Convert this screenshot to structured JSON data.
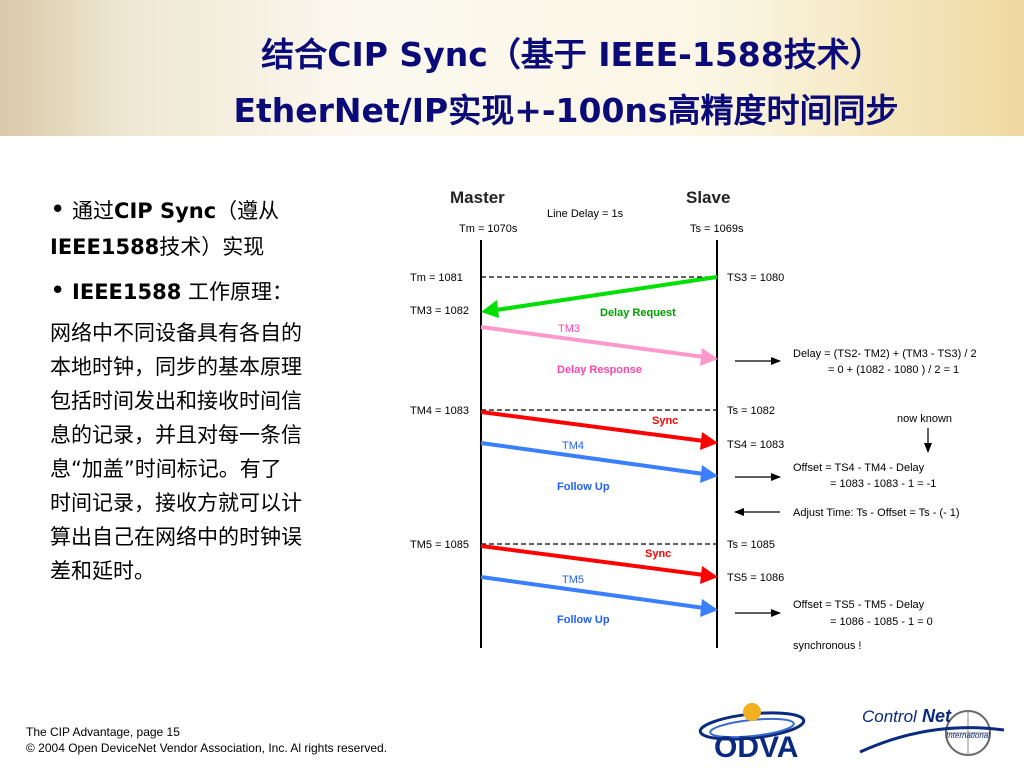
{
  "header": {
    "title_line1": "结合CIP Sync（基于 IEEE-1588技术）",
    "title_line2": "EtherNet/IP实现+-100ns高精度时间同步"
  },
  "bullets": {
    "b1_prefix": "通过",
    "b1_bold": "CIP Sync",
    "b1_suffix": "（遵从",
    "b1_line2_bold": "IEEE1588",
    "b1_line2_suffix": "技术）实现",
    "b2_bold": "IEEE1588",
    "b2_suffix": " 工作原理：",
    "para_lines": [
      "网络中不同设备具有各自的",
      "本地时钟，同步的基本原理",
      "包括时间发出和接收时间信",
      "息的记录，并且对每一条信",
      "息“加盖”时间标记。有了",
      "时间记录，接收方就可以计",
      "算出自己在网络中的时钟误",
      "差和延时。"
    ]
  },
  "diagram": {
    "master_label": "Master",
    "slave_label": "Slave",
    "line_delay": "Line Delay = 1s",
    "tm_start": "Tm = 1070s",
    "ts_start": "Ts = 1069s",
    "left_labels": [
      "Tm = 1081",
      "TM3 = 1082",
      "TM4 = 1083",
      "TM5 = 1085"
    ],
    "right_labels": [
      "TS3 = 1080",
      "Ts = 1082",
      "TS4 = 1083",
      "Ts = 1085",
      "TS5 = 1086"
    ],
    "msg_labels": {
      "delay_request": "Delay Request",
      "tm3": "TM3",
      "delay_response": "Delay Response",
      "sync1": "Sync",
      "tm4": "TM4",
      "follow_up1": "Follow Up",
      "sync2": "Sync",
      "tm5": "TM5",
      "follow_up2": "Follow Up"
    },
    "notes": {
      "delay_l1": "Delay = (TS2- TM2) + (TM3 - TS3) / 2",
      "delay_l2": "= 0 + (1082 - 1080 ) / 2 = 1",
      "now_known": "now known",
      "offset1_l1": "Offset = TS4 - TM4 - Delay",
      "offset1_l2": "= 1083 - 1083 - 1 = -1",
      "adjust": "Adjust Time: Ts - Offset = Ts - (- 1)",
      "offset2_l1": "Offset = TS5 - TM5 - Delay",
      "offset2_l2": "= 1086 - 1085 - 1 = 0",
      "synchronous": "synchronous !"
    },
    "colors": {
      "green": "#00e000",
      "pink": "#ff99cc",
      "red": "#ff0000",
      "blue": "#3a7fff",
      "label_green": "#00a000",
      "label_pink": "#ff44aa",
      "label_red": "#ff0000",
      "label_blue": "#1f5fff"
    }
  },
  "footer": {
    "line1": "The CIP Advantage, page 15",
    "line2": "© 2004 Open DeviceNet Vendor Association, Inc.   Al rights reserved."
  },
  "logos": {
    "odva": "ODVA",
    "controlnet_a": "Control",
    "controlnet_b": "Net",
    "international": "International"
  }
}
